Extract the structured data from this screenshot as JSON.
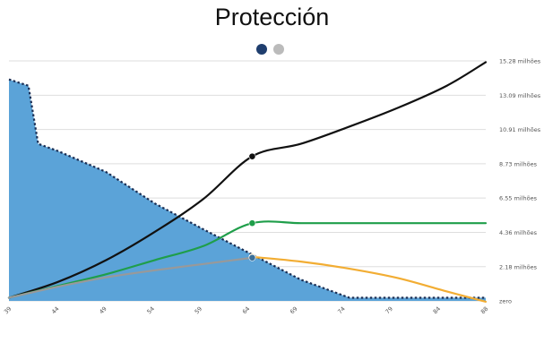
{
  "title": "Protección",
  "chart_data": {
    "type": "line",
    "title": "Protección",
    "xlabel": "",
    "ylabel": "",
    "xlim": [
      39,
      88
    ],
    "ylim": [
      0,
      15.28
    ],
    "x_ticks": [
      "39",
      "44",
      "49",
      "54",
      "59",
      "64",
      "69",
      "74",
      "79",
      "84",
      "88"
    ],
    "y_ticks": [
      {
        "value": 0,
        "label": "zero"
      },
      {
        "value": 2.18,
        "label": "2.18 milhões"
      },
      {
        "value": 4.36,
        "label": "4.36 milhões"
      },
      {
        "value": 6.55,
        "label": "6.55 milhões"
      },
      {
        "value": 8.73,
        "label": "8.73 milhões"
      },
      {
        "value": 10.91,
        "label": "10.91 milhões"
      },
      {
        "value": 13.09,
        "label": "13.09 milhões"
      },
      {
        "value": 15.28,
        "label": "15.28 milhões"
      }
    ],
    "legend_position": "top-center",
    "legend_colors": [
      "#1f3e6e",
      "#bbbbbb"
    ],
    "grid": true,
    "series": [
      {
        "role": "area",
        "color": "#5ba3d8",
        "points": [
          [
            39,
            14.1
          ],
          [
            41,
            13.7
          ],
          [
            42,
            10.0
          ],
          [
            44,
            9.55
          ],
          [
            49,
            8.2
          ],
          [
            54,
            6.2
          ],
          [
            59,
            4.55
          ],
          [
            64,
            2.95
          ],
          [
            69,
            1.35
          ],
          [
            74,
            0.2
          ],
          [
            79,
            0.2
          ],
          [
            84,
            0.2
          ],
          [
            88,
            0.2
          ]
        ]
      },
      {
        "role": "projection",
        "color": "#111111",
        "points": [
          [
            39,
            0.2
          ],
          [
            44,
            1.2
          ],
          [
            49,
            2.6
          ],
          [
            54,
            4.4
          ],
          [
            59,
            6.5
          ],
          [
            64,
            9.2
          ],
          [
            69,
            10.0
          ],
          [
            74,
            11.1
          ],
          [
            79,
            12.3
          ],
          [
            84,
            13.7
          ],
          [
            88,
            15.2
          ]
        ]
      },
      {
        "role": "projection",
        "color": "#1f9e4a",
        "points": [
          [
            39,
            0.2
          ],
          [
            44,
            0.95
          ],
          [
            49,
            1.7
          ],
          [
            54,
            2.6
          ],
          [
            59,
            3.5
          ],
          [
            64,
            4.95
          ],
          [
            69,
            4.95
          ],
          [
            74,
            4.95
          ],
          [
            79,
            4.95
          ],
          [
            84,
            4.95
          ],
          [
            88,
            4.95
          ]
        ]
      },
      {
        "role": "projection",
        "color": "#999999",
        "points": [
          [
            39,
            0.2
          ],
          [
            44,
            0.9
          ],
          [
            49,
            1.5
          ],
          [
            54,
            1.95
          ],
          [
            59,
            2.35
          ],
          [
            64,
            2.75
          ]
        ]
      },
      {
        "role": "projection",
        "color": "#f2ad33",
        "points": [
          [
            64,
            2.8
          ],
          [
            69,
            2.5
          ],
          [
            74,
            2.05
          ],
          [
            79,
            1.45
          ],
          [
            84,
            0.6
          ],
          [
            88,
            -0.05
          ]
        ]
      }
    ],
    "markers": [
      {
        "x": 64,
        "y": 9.2,
        "color": "#111111"
      },
      {
        "x": 64,
        "y": 4.95,
        "color": "#1f9e4a"
      },
      {
        "x": 64,
        "y": 2.8,
        "color": "#f2ad33"
      },
      {
        "x": 64,
        "y": 2.75,
        "color": "#3a6f9a"
      }
    ]
  }
}
